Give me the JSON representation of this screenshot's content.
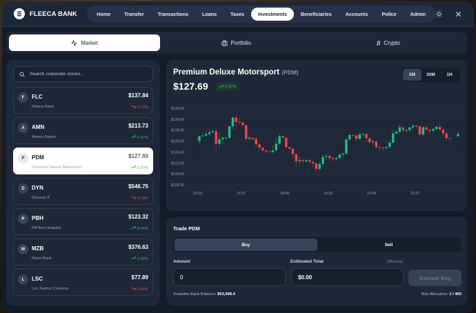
{
  "header": {
    "brand": "FLEECA BANK",
    "nav": [
      {
        "label": "Home",
        "active": false
      },
      {
        "label": "Transfer",
        "active": false
      },
      {
        "label": "Transactions",
        "active": false
      },
      {
        "label": "Loans",
        "active": false
      },
      {
        "label": "Taxes",
        "active": false
      },
      {
        "label": "Investments",
        "active": true
      },
      {
        "label": "Beneficiaries",
        "active": false
      },
      {
        "label": "Accounts",
        "active": false
      },
      {
        "label": "Police",
        "active": false
      },
      {
        "label": "Admin",
        "active": false
      }
    ],
    "icons": [
      "theme-toggle-icon",
      "close-icon"
    ]
  },
  "tabs": [
    {
      "label": "Market",
      "icon": "activity-icon",
      "active": true
    },
    {
      "label": "Portfolio",
      "icon": "briefcase-icon",
      "active": false
    },
    {
      "label": "Crypto",
      "icon": "bitcoin-icon",
      "active": false
    }
  ],
  "sidebar": {
    "search_placeholder": "Search corporate stocks...",
    "stocks": [
      {
        "initial": "F",
        "symbol": "FLC",
        "name": "Fleeca Bank",
        "price": "$137.84",
        "change": "0.13%",
        "direction": "down",
        "active": false
      },
      {
        "initial": "A",
        "symbol": "AMN",
        "name": "Ammu-Nation",
        "price": "$213.73",
        "change": "0.37%",
        "direction": "up",
        "active": false
      },
      {
        "initial": "P",
        "symbol": "PDM",
        "name": "Premium Deluxe Motorsport",
        "price": "$127.69",
        "change": "0.37%",
        "direction": "up",
        "active": true
      },
      {
        "initial": "D",
        "symbol": "DYN",
        "name": "Dynasty 8",
        "price": "$546.75",
        "change": "0.18%",
        "direction": "down",
        "active": false
      },
      {
        "initial": "P",
        "symbol": "PBH",
        "name": "Pill Box Hospital",
        "price": "$123.32",
        "change": "0.54%",
        "direction": "up",
        "active": false
      },
      {
        "initial": "M",
        "symbol": "MZB",
        "name": "Maze Bank",
        "price": "$376.63",
        "change": "0.05%",
        "direction": "up",
        "active": false
      },
      {
        "initial": "L",
        "symbol": "LSC",
        "name": "Los Santos Customs",
        "price": "$77.89",
        "change": "0.86%",
        "direction": "down",
        "active": false
      }
    ]
  },
  "chart_header": {
    "company": "Premium Deluxe Motorsport",
    "ticker": "(PDM)",
    "price": "$127.69",
    "change": "0.37%",
    "ranges": [
      {
        "label": "5M",
        "active": true
      },
      {
        "label": "30M",
        "active": false
      },
      {
        "label": "1H",
        "active": false
      }
    ]
  },
  "trade": {
    "title": "Trade PDM",
    "sides": [
      {
        "label": "Buy",
        "active": true
      },
      {
        "label": "Sell",
        "active": false
      }
    ],
    "amount_label": "Amount",
    "amount_value": "0",
    "total_label": "Estimated Total",
    "fee_note": "(2% Fee)",
    "total_value": "$0.00",
    "execute_label": "Execute Buy",
    "balance_label": "Available Bank Balance:",
    "balance_value": "$53,998.4",
    "allocation_label": "Max Allocation:",
    "allocation_value": "1 / 400"
  },
  "colors": {
    "up": "#22c55e",
    "down": "#ef4444",
    "panel": "#1f2839",
    "background": "#151c29"
  },
  "chart_data": {
    "type": "candlestick",
    "title": "Premium Deluxe Motorsport (PDM)",
    "xlabel": "",
    "ylabel": "",
    "ylim": [
      118,
      132
    ],
    "y_ticks": [
      "$132.00",
      "$130.00",
      "$128.00",
      "$126.00",
      "$124.00",
      "$122.00",
      "$120.00",
      "$118.00"
    ],
    "x_ticks": [
      "15:10",
      "16:37",
      "18:05",
      "19:32",
      "21:00",
      "22:27"
    ],
    "grid": "horizontal-dashed",
    "candles": [
      [
        126.0,
        126.9,
        125.5,
        127.0
      ],
      [
        126.9,
        127.0,
        126.7,
        127.2
      ],
      [
        127.0,
        127.3,
        126.8,
        127.8
      ],
      [
        127.3,
        127.6,
        127.0,
        128.1
      ],
      [
        127.6,
        127.8,
        127.4,
        127.9
      ],
      [
        127.8,
        125.5,
        124.0,
        127.9
      ],
      [
        125.5,
        126.3,
        124.6,
        127.6
      ],
      [
        126.3,
        126.6,
        125.2,
        126.9
      ],
      [
        126.6,
        126.6,
        126.3,
        126.9
      ],
      [
        126.6,
        128.7,
        126.4,
        128.8
      ],
      [
        128.7,
        130.3,
        128.0,
        130.4
      ],
      [
        130.3,
        129.5,
        128.2,
        131.1
      ],
      [
        129.5,
        129.4,
        128.9,
        130.6
      ],
      [
        129.4,
        128.9,
        128.4,
        129.6
      ],
      [
        128.9,
        126.4,
        126.0,
        128.9
      ],
      [
        126.4,
        126.6,
        126.1,
        126.9
      ],
      [
        126.6,
        126.4,
        126.0,
        126.7
      ],
      [
        126.4,
        125.4,
        125.0,
        126.9
      ],
      [
        125.4,
        124.8,
        124.2,
        125.5
      ],
      [
        124.8,
        124.3,
        123.9,
        124.8
      ],
      [
        124.3,
        124.1,
        123.9,
        124.4
      ],
      [
        124.1,
        124.0,
        123.8,
        124.2
      ],
      [
        124.0,
        124.3,
        123.8,
        125.2
      ],
      [
        124.3,
        125.5,
        124.1,
        126.6
      ],
      [
        125.5,
        126.9,
        125.3,
        127.4
      ],
      [
        126.9,
        126.6,
        126.2,
        127.1
      ],
      [
        126.6,
        124.9,
        124.5,
        126.6
      ],
      [
        124.9,
        124.6,
        124.2,
        124.9
      ],
      [
        124.6,
        123.6,
        122.8,
        124.6
      ],
      [
        123.6,
        122.3,
        121.3,
        123.6
      ],
      [
        122.3,
        122.5,
        121.6,
        123.1
      ],
      [
        122.5,
        122.3,
        121.9,
        122.6
      ],
      [
        122.3,
        122.5,
        122.0,
        122.8
      ],
      [
        122.5,
        122.2,
        121.8,
        122.6
      ],
      [
        122.2,
        121.9,
        121.2,
        122.3
      ],
      [
        121.9,
        120.9,
        120.2,
        121.9
      ],
      [
        120.9,
        121.8,
        120.4,
        122.2
      ],
      [
        121.8,
        123.1,
        121.2,
        123.6
      ],
      [
        123.1,
        123.3,
        122.5,
        123.7
      ],
      [
        123.3,
        122.9,
        122.3,
        123.5
      ],
      [
        122.9,
        122.7,
        122.2,
        123.2
      ],
      [
        122.7,
        122.9,
        122.3,
        123.1
      ],
      [
        122.9,
        123.5,
        122.6,
        123.8
      ],
      [
        123.5,
        123.7,
        122.7,
        123.9
      ],
      [
        123.7,
        126.3,
        123.4,
        126.7
      ],
      [
        126.3,
        127.1,
        126.0,
        127.4
      ],
      [
        127.1,
        127.0,
        126.6,
        127.3
      ],
      [
        127.0,
        126.4,
        126.0,
        127.4
      ],
      [
        126.4,
        127.2,
        126.1,
        127.6
      ],
      [
        127.2,
        127.3,
        126.9,
        127.6
      ],
      [
        127.3,
        126.5,
        125.7,
        127.4
      ],
      [
        126.5,
        125.8,
        125.3,
        126.6
      ],
      [
        125.8,
        125.9,
        125.2,
        126.3
      ],
      [
        125.9,
        124.9,
        124.4,
        126.1
      ],
      [
        124.9,
        124.8,
        124.1,
        125.1
      ],
      [
        124.8,
        124.7,
        124.2,
        125.0
      ],
      [
        124.7,
        124.9,
        124.3,
        125.0
      ],
      [
        124.9,
        125.7,
        124.5,
        126.2
      ],
      [
        125.7,
        127.4,
        125.5,
        127.9
      ],
      [
        127.4,
        127.7,
        127.2,
        127.9
      ],
      [
        127.7,
        128.5,
        127.3,
        129.0
      ],
      [
        128.5,
        128.0,
        127.4,
        128.7
      ],
      [
        128.0,
        128.0,
        127.6,
        128.2
      ],
      [
        128.0,
        128.5,
        127.7,
        128.6
      ],
      [
        128.5,
        128.8,
        128.2,
        129.1
      ],
      [
        128.8,
        128.7,
        128.4,
        128.9
      ],
      [
        128.7,
        127.2,
        126.6,
        128.9
      ],
      [
        127.2,
        128.5,
        126.9,
        128.7
      ],
      [
        128.5,
        128.1,
        127.6,
        128.9
      ],
      [
        128.1,
        127.9,
        127.4,
        128.3
      ],
      [
        127.9,
        128.2,
        127.5,
        128.4
      ],
      [
        128.2,
        128.6,
        127.9,
        128.9
      ],
      [
        128.6,
        128.1,
        127.8,
        129.4
      ],
      [
        128.1,
        127.4,
        126.9,
        128.4
      ],
      [
        127.4,
        126.5,
        125.9,
        127.8
      ],
      [
        126.5,
        126.5,
        126.5,
        126.5
      ],
      [
        126.9,
        127.3,
        126.7,
        127.8
      ]
    ]
  }
}
